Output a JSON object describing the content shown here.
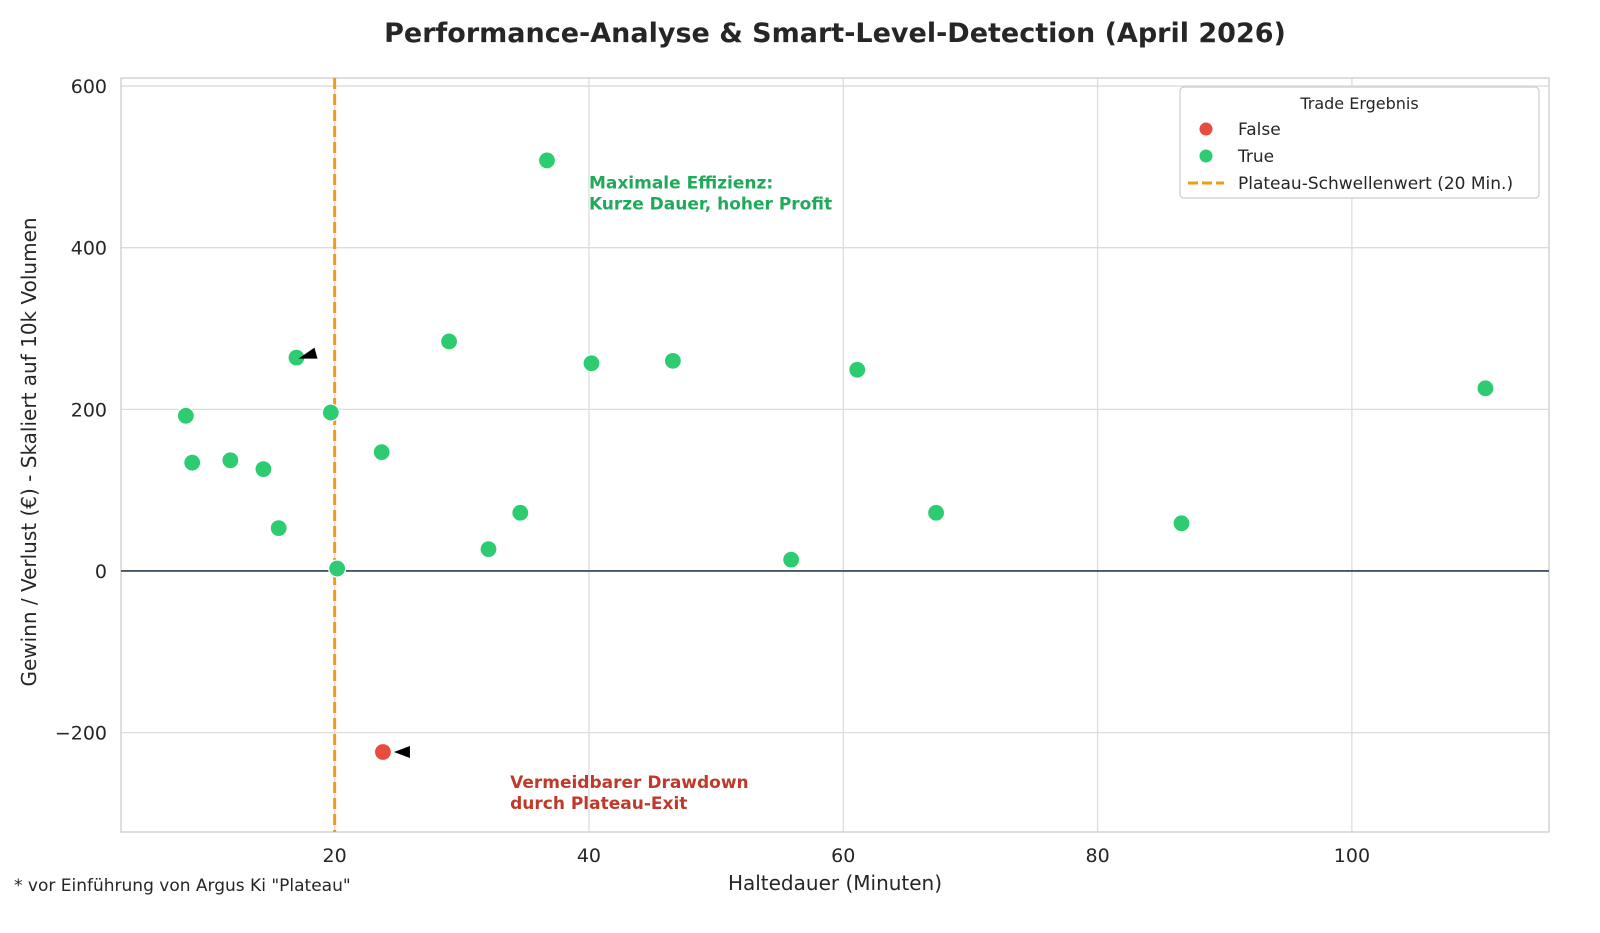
{
  "chart_data": {
    "type": "scatter",
    "title": "Performance-Analyse & Smart-Level-Detection (April 2026)",
    "xlabel": "Haltedauer (Minuten)",
    "ylabel": "Gewinn / Verlust (€) - Skaliert auf 10k Volumen",
    "xlim": [
      3.2,
      115.5
    ],
    "ylim": [
      -323,
      610
    ],
    "xticks": [
      20,
      40,
      60,
      80,
      100
    ],
    "yticks": [
      -200,
      0,
      200,
      400,
      600
    ],
    "ytick_labels": [
      "−200",
      "0",
      "200",
      "400",
      "600"
    ],
    "grid": true,
    "zero_line": 0,
    "threshold_line": {
      "x": 20,
      "label": "Plateau-Schwellenwert (20 Min.)",
      "color": "#f39c12"
    },
    "legend": {
      "title": "Trade Ergebnis",
      "placement": "top-right"
    },
    "series": [
      {
        "name": "False",
        "color": "#e74c3c",
        "points": [
          {
            "x": 23.8,
            "y": -224
          }
        ]
      },
      {
        "name": "True",
        "color": "#2ecc71",
        "points": [
          {
            "x": 8.3,
            "y": 192
          },
          {
            "x": 8.8,
            "y": 134
          },
          {
            "x": 11.8,
            "y": 137
          },
          {
            "x": 14.4,
            "y": 126
          },
          {
            "x": 15.6,
            "y": 53
          },
          {
            "x": 17.0,
            "y": 264
          },
          {
            "x": 19.7,
            "y": 196
          },
          {
            "x": 20.2,
            "y": 3
          },
          {
            "x": 23.7,
            "y": 147
          },
          {
            "x": 29.0,
            "y": 284
          },
          {
            "x": 32.1,
            "y": 27
          },
          {
            "x": 34.6,
            "y": 72
          },
          {
            "x": 36.7,
            "y": 508
          },
          {
            "x": 40.2,
            "y": 257
          },
          {
            "x": 46.6,
            "y": 260
          },
          {
            "x": 55.9,
            "y": 14
          },
          {
            "x": 61.1,
            "y": 249
          },
          {
            "x": 67.3,
            "y": 72
          },
          {
            "x": 86.6,
            "y": 59
          },
          {
            "x": 110.5,
            "y": 226
          }
        ]
      }
    ],
    "annotations": [
      {
        "lines": [
          "Maximale Effizienz:",
          "Kurze Dauer, hoher Profit"
        ],
        "x": 40,
        "y": 452,
        "color": "#1faa59",
        "arrow_from": {
          "x": 34,
          "y": 400
        },
        "arrow_to": {
          "x": 36.7,
          "y": 508
        }
      },
      {
        "lines": [
          "Vermeidbarer Drawdown",
          "durch Plateau-Exit"
        ],
        "x": 33.8,
        "y": -275,
        "color": "#c0392b",
        "arrow_from": {
          "x": 26,
          "y": -225
        },
        "arrow_to": {
          "x": 23.8,
          "y": -224
        }
      }
    ],
    "extra_arrow": {
      "from": {
        "x": 18.5,
        "y": 275
      },
      "to": {
        "x": 17.0,
        "y": 264
      }
    }
  },
  "footnote": "* vor Einführung von Argus Ki \"Plateau\""
}
